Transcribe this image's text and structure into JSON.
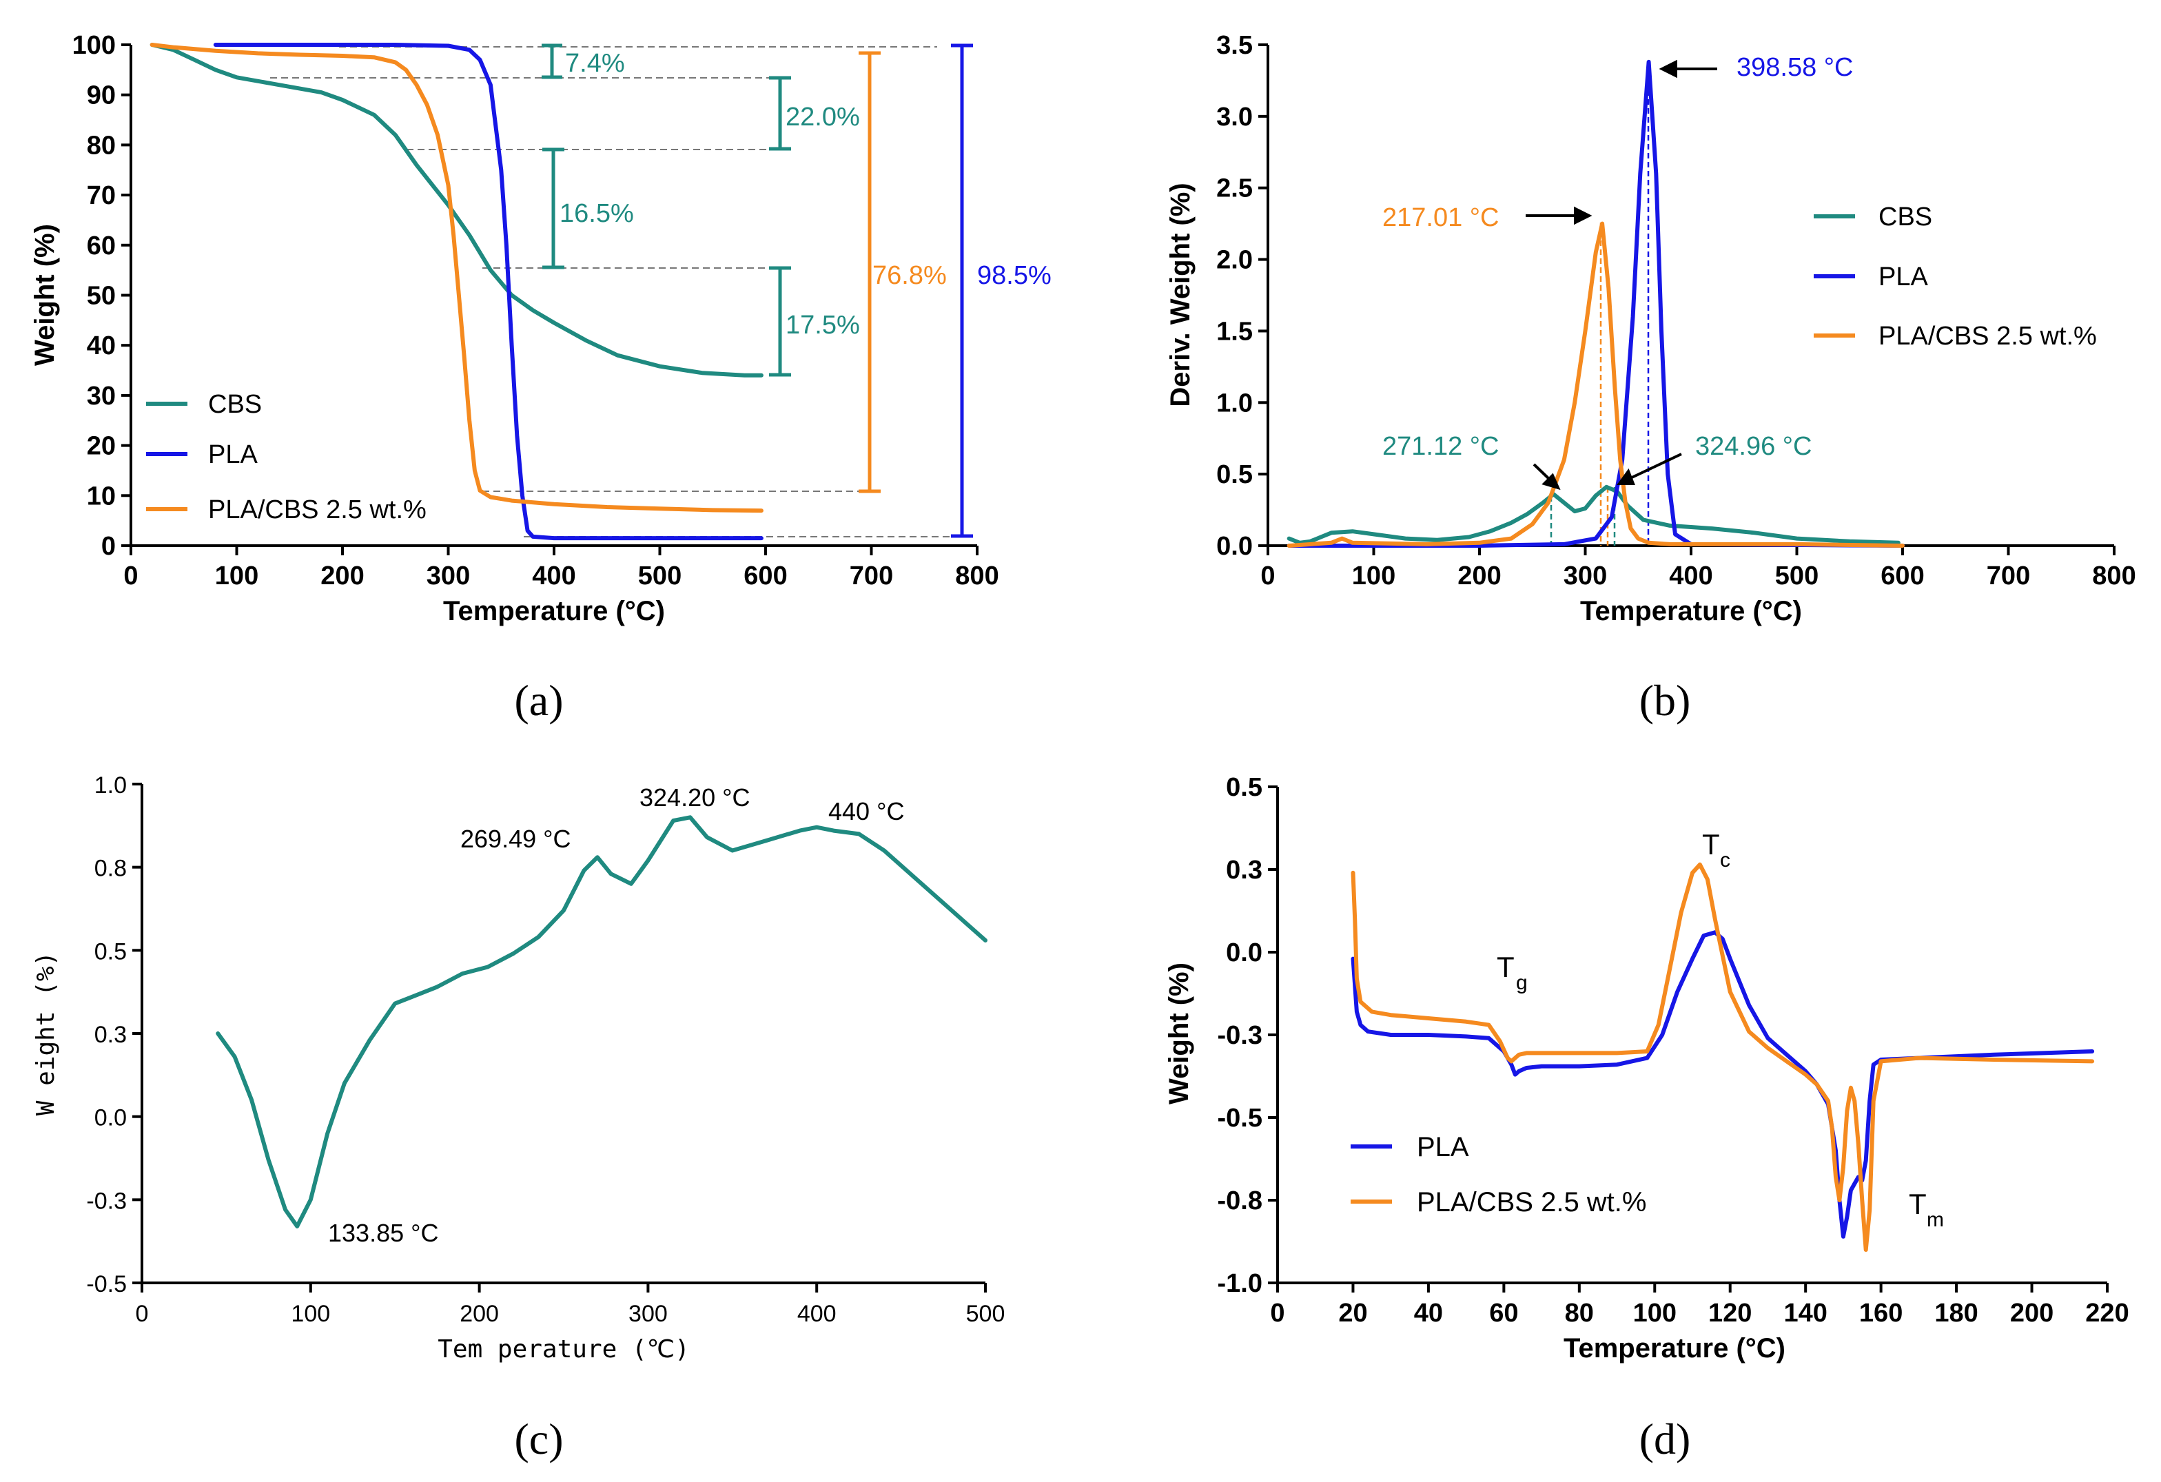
{
  "colors": {
    "cbs": "#1f8a80",
    "pla": "#1616e6",
    "blend": "#f58a1f",
    "axis": "#000000"
  },
  "panel_labels": [
    "(a)",
    "(b)",
    "(c)",
    "(d)"
  ],
  "chart_data": [
    {
      "id": "a",
      "type": "line",
      "xlabel": "Temperature (°C)",
      "ylabel": "Weight (%)",
      "xlim": [
        0,
        800
      ],
      "ylim": [
        0,
        100
      ],
      "xticks": [
        "0",
        "100",
        "200",
        "300",
        "400",
        "500",
        "600",
        "700",
        "800"
      ],
      "yticks": [
        "0",
        "10",
        "20",
        "30",
        "40",
        "50",
        "60",
        "70",
        "80",
        "90",
        "100"
      ],
      "legend": [
        "CBS",
        "PLA",
        "PLA/CBS 2.5 wt.%"
      ],
      "series": [
        {
          "name": "CBS",
          "x": [
            20,
            40,
            60,
            80,
            100,
            140,
            180,
            200,
            230,
            250,
            270,
            285,
            300,
            320,
            340,
            360,
            380,
            400,
            430,
            460,
            500,
            540,
            580,
            596
          ],
          "y": [
            100,
            99,
            97,
            95,
            93.5,
            92,
            90.5,
            89,
            86,
            82,
            76,
            72,
            68,
            62,
            55,
            50,
            47,
            44.5,
            41,
            38,
            35.8,
            34.5,
            34,
            34
          ]
        },
        {
          "name": "PLA",
          "x": [
            80,
            150,
            250,
            300,
            320,
            330,
            340,
            350,
            355,
            360,
            365,
            370,
            375,
            380,
            400,
            500,
            596
          ],
          "y": [
            100,
            100,
            100,
            99.8,
            99,
            97,
            92,
            75,
            60,
            40,
            22,
            10,
            3,
            1.8,
            1.5,
            1.5,
            1.5
          ]
        },
        {
          "name": "PLA/CBS 2.5 wt.%",
          "x": [
            20,
            40,
            80,
            120,
            160,
            200,
            230,
            250,
            260,
            270,
            280,
            290,
            300,
            305,
            310,
            315,
            320,
            325,
            330,
            340,
            360,
            400,
            450,
            500,
            550,
            596
          ],
          "y": [
            100,
            99.5,
            98.8,
            98.3,
            98,
            97.8,
            97.5,
            96.5,
            95,
            92,
            88,
            82,
            72,
            62,
            50,
            38,
            25,
            15,
            11,
            9.7,
            9,
            8.3,
            7.7,
            7.4,
            7.1,
            7
          ]
        }
      ],
      "annotations": [
        "7.4%",
        "22.0%",
        "16.5%",
        "17.5%",
        "76.8%",
        "98.5%"
      ]
    },
    {
      "id": "b",
      "type": "line",
      "xlabel": "Temperature (°C)",
      "ylabel": "Deriv. Weight (%)",
      "xlim": [
        0,
        800
      ],
      "ylim": [
        0,
        3.5
      ],
      "xticks": [
        "0",
        "100",
        "200",
        "300",
        "400",
        "500",
        "600",
        "700",
        "800"
      ],
      "yticks": [
        "0.0",
        "0.5",
        "1.0",
        "1.5",
        "2.0",
        "2.5",
        "3.0",
        "3.5"
      ],
      "legend": [
        "CBS",
        "PLA",
        "PLA/CBS 2.5 wt.%"
      ],
      "series": [
        {
          "name": "CBS",
          "x": [
            20,
            30,
            40,
            50,
            60,
            80,
            100,
            130,
            160,
            190,
            210,
            230,
            245,
            260,
            270,
            280,
            290,
            300,
            310,
            320,
            330,
            340,
            355,
            380,
            420,
            460,
            500,
            550,
            596
          ],
          "y": [
            0.05,
            0.02,
            0.03,
            0.06,
            0.09,
            0.1,
            0.08,
            0.05,
            0.04,
            0.06,
            0.1,
            0.16,
            0.22,
            0.3,
            0.36,
            0.3,
            0.24,
            0.26,
            0.35,
            0.41,
            0.38,
            0.28,
            0.18,
            0.14,
            0.12,
            0.09,
            0.05,
            0.03,
            0.02
          ]
        },
        {
          "name": "PLA",
          "x": [
            20,
            200,
            280,
            310,
            325,
            335,
            345,
            352,
            360,
            367,
            372,
            378,
            385,
            400,
            600
          ],
          "y": [
            0,
            0,
            0.01,
            0.05,
            0.2,
            0.6,
            1.6,
            2.6,
            3.38,
            2.6,
            1.5,
            0.5,
            0.08,
            0.01,
            0
          ]
        },
        {
          "name": "PLA/CBS 2.5 wt.%",
          "x": [
            20,
            60,
            70,
            80,
            150,
            200,
            230,
            250,
            265,
            280,
            290,
            300,
            310,
            316,
            322,
            328,
            333,
            338,
            343,
            350,
            360,
            380,
            420,
            500,
            600
          ],
          "y": [
            0,
            0.02,
            0.05,
            0.02,
            0.01,
            0.02,
            0.05,
            0.15,
            0.3,
            0.6,
            1.0,
            1.5,
            2.05,
            2.25,
            1.8,
            1.1,
            0.6,
            0.3,
            0.12,
            0.05,
            0.02,
            0.01,
            0.01,
            0.01,
            0
          ]
        }
      ],
      "annotations": [
        "398.58 °C",
        "217.01 °C",
        "271.12 °C",
        "324.96 °C"
      ]
    },
    {
      "id": "c",
      "type": "line",
      "xlabel": "Tem perature (℃)",
      "ylabel": "W eight (%)",
      "xlim": [
        0,
        500
      ],
      "ylim": [
        -0.5,
        1.0
      ],
      "xticks": [
        "0",
        "100",
        "200",
        "300",
        "400",
        "500"
      ],
      "yticks": [
        "-0.5",
        "-0.3",
        "0.0",
        "0.3",
        "0.5",
        "0.8",
        "1.0"
      ],
      "series": [
        {
          "name": "CBS",
          "x": [
            45,
            55,
            65,
            75,
            85,
            92,
            100,
            110,
            120,
            135,
            150,
            160,
            175,
            190,
            205,
            220,
            235,
            250,
            262,
            270,
            278,
            290,
            300,
            315,
            325,
            335,
            350,
            370,
            390,
            400,
            410,
            425,
            440,
            460,
            480,
            500
          ],
          "y": [
            0.25,
            0.18,
            0.05,
            -0.13,
            -0.28,
            -0.33,
            -0.25,
            -0.05,
            0.1,
            0.23,
            0.34,
            0.36,
            0.39,
            0.43,
            0.45,
            0.49,
            0.54,
            0.62,
            0.74,
            0.78,
            0.73,
            0.7,
            0.77,
            0.89,
            0.9,
            0.84,
            0.8,
            0.83,
            0.86,
            0.87,
            0.86,
            0.85,
            0.8,
            0.71,
            0.62,
            0.53
          ]
        }
      ],
      "annotations": [
        "133.85 °C",
        "269.49 °C",
        "324.20 °C",
        "440 °C"
      ]
    },
    {
      "id": "d",
      "type": "line",
      "xlabel": "Temperature (°C)",
      "ylabel": "Weight (%)",
      "xlim": [
        0,
        220
      ],
      "ylim": [
        -1.0,
        0.5
      ],
      "xticks": [
        "0",
        "20",
        "40",
        "60",
        "80",
        "100",
        "120",
        "140",
        "160",
        "180",
        "200",
        "220"
      ],
      "yticks": [
        "-1.0",
        "-0.8",
        "-0.5",
        "-0.3",
        "0.0",
        "0.3",
        "0.5"
      ],
      "legend": [
        "PLA",
        "PLA/CBS 2.5 wt.%"
      ],
      "series": [
        {
          "name": "PLA",
          "x": [
            20,
            20.5,
            21,
            22,
            24,
            30,
            40,
            50,
            56,
            60,
            62,
            63,
            64,
            66,
            70,
            80,
            90,
            98,
            102,
            106,
            110,
            113,
            116,
            118,
            120,
            125,
            130,
            135,
            140,
            143,
            146,
            148,
            149,
            150,
            151,
            152,
            153,
            154,
            155,
            156,
            157,
            158,
            160,
            170,
            190,
            216
          ],
          "y": [
            -0.02,
            -0.1,
            -0.18,
            -0.22,
            -0.24,
            -0.25,
            -0.25,
            -0.255,
            -0.26,
            -0.3,
            -0.34,
            -0.37,
            -0.36,
            -0.35,
            -0.345,
            -0.345,
            -0.34,
            -0.32,
            -0.25,
            -0.12,
            -0.02,
            0.05,
            0.06,
            0.04,
            -0.02,
            -0.16,
            -0.26,
            -0.31,
            -0.36,
            -0.4,
            -0.46,
            -0.6,
            -0.75,
            -0.86,
            -0.8,
            -0.72,
            -0.7,
            -0.68,
            -0.69,
            -0.63,
            -0.45,
            -0.34,
            -0.325,
            -0.32,
            -0.31,
            -0.3
          ]
        },
        {
          "name": "PLA/CBS 2.5 wt.%",
          "x": [
            20,
            20.5,
            21,
            22,
            25,
            30,
            40,
            50,
            56,
            59,
            61,
            62,
            64,
            66,
            70,
            80,
            90,
            98,
            101,
            104,
            107,
            110,
            112,
            114,
            116,
            120,
            125,
            130,
            135,
            140,
            143,
            146,
            147,
            148,
            149,
            150,
            151,
            152,
            153,
            154,
            155,
            156,
            157,
            158,
            160,
            170,
            190,
            216
          ],
          "y": [
            0.24,
            0.1,
            -0.08,
            -0.15,
            -0.18,
            -0.19,
            -0.2,
            -0.21,
            -0.22,
            -0.27,
            -0.32,
            -0.33,
            -0.31,
            -0.305,
            -0.305,
            -0.305,
            -0.305,
            -0.3,
            -0.22,
            -0.05,
            0.12,
            0.24,
            0.265,
            0.22,
            0.1,
            -0.12,
            -0.24,
            -0.29,
            -0.33,
            -0.37,
            -0.4,
            -0.45,
            -0.53,
            -0.68,
            -0.75,
            -0.65,
            -0.48,
            -0.41,
            -0.45,
            -0.58,
            -0.75,
            -0.9,
            -0.78,
            -0.45,
            -0.33,
            -0.32,
            -0.325,
            -0.33
          ]
        }
      ],
      "annotations": [
        "T",
        "g",
        "T",
        "c",
        "T",
        "m"
      ]
    }
  ]
}
